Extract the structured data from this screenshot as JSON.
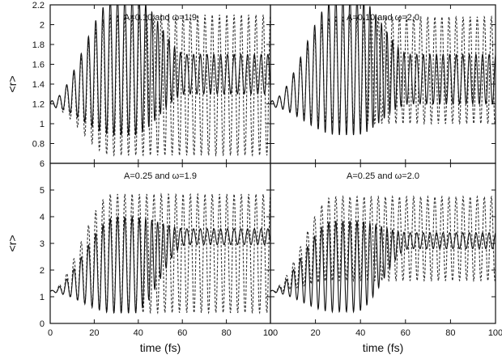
{
  "chart_data": {
    "type": "line",
    "layout": "2x2 grid of panels; top row shares y range 0.6 to 2.2, bottom row shares y range 0 to 6; columns share x range 0 to 100",
    "xlabel": "time (fs)",
    "ylabel": "<r>",
    "x_range": [
      0,
      100
    ],
    "x_ticks": [
      "0",
      "20",
      "40",
      "60",
      "80",
      "100"
    ],
    "top_row": {
      "y_range": [
        0.6,
        2.2
      ],
      "y_ticks": [
        "0.6",
        "0.8",
        "1",
        "1.2",
        "1.4",
        "1.6",
        "1.8",
        "2",
        "2.2"
      ]
    },
    "bottom_row": {
      "y_range": [
        0,
        6
      ],
      "y_ticks": [
        "0",
        "1",
        "2",
        "3",
        "4",
        "5",
        "6"
      ]
    },
    "series_styles": {
      "solid": "#111111",
      "dashed": "#333333"
    },
    "panels": [
      {
        "id": "top-left",
        "title": "A=0.10 and ω=1.9",
        "row": "top",
        "col": 0,
        "omega": 1.9,
        "start": 1.2,
        "solid": {
          "description": "oscillation grows, then dephases after about 40 fs",
          "envelope_max_amp": 0.7,
          "envelope_reached_at_fs": 30,
          "late_mean": 1.5,
          "late_amp": 0.2
        },
        "dashed": {
          "description": "oscillation grows to full amplitude and persists",
          "min": 0.68,
          "max": 2.1
        }
      },
      {
        "id": "top-right",
        "title": "A=0.10 and ω=2.0",
        "row": "top",
        "col": 1,
        "omega": 2.0,
        "start": 1.2,
        "solid": {
          "description": "oscillation grows, then dephases after about 40 fs",
          "envelope_max_amp": 0.7,
          "envelope_reached_at_fs": 30,
          "late_mean": 1.45,
          "late_amp": 0.25
        },
        "dashed": {
          "description": "oscillation grows to full amplitude and persists",
          "min": 1.0,
          "max": 2.08
        }
      },
      {
        "id": "bottom-left",
        "title": "A=0.25 and ω=1.9",
        "row": "bottom",
        "col": 0,
        "omega": 1.9,
        "start": 1.2,
        "solid": {
          "description": "oscillation grows, then dephases after about 40 fs",
          "envelope_max_amp": 1.8,
          "envelope_reached_at_fs": 30,
          "late_mean": 3.25,
          "late_amp": 0.3
        },
        "dashed": {
          "description": "oscillation grows to full amplitude and persists",
          "min": 0.4,
          "max": 4.85
        }
      },
      {
        "id": "bottom-right",
        "title": "A=0.25 and ω=2.0",
        "row": "bottom",
        "col": 1,
        "omega": 2.0,
        "start": 1.2,
        "solid": {
          "description": "oscillation grows, then dephases after about 40 fs",
          "envelope_max_amp": 1.7,
          "envelope_reached_at_fs": 28,
          "late_mean": 3.1,
          "late_amp": 0.3
        },
        "dashed": {
          "description": "oscillation grows to full amplitude and persists",
          "min": 1.6,
          "max": 4.75
        }
      }
    ]
  }
}
